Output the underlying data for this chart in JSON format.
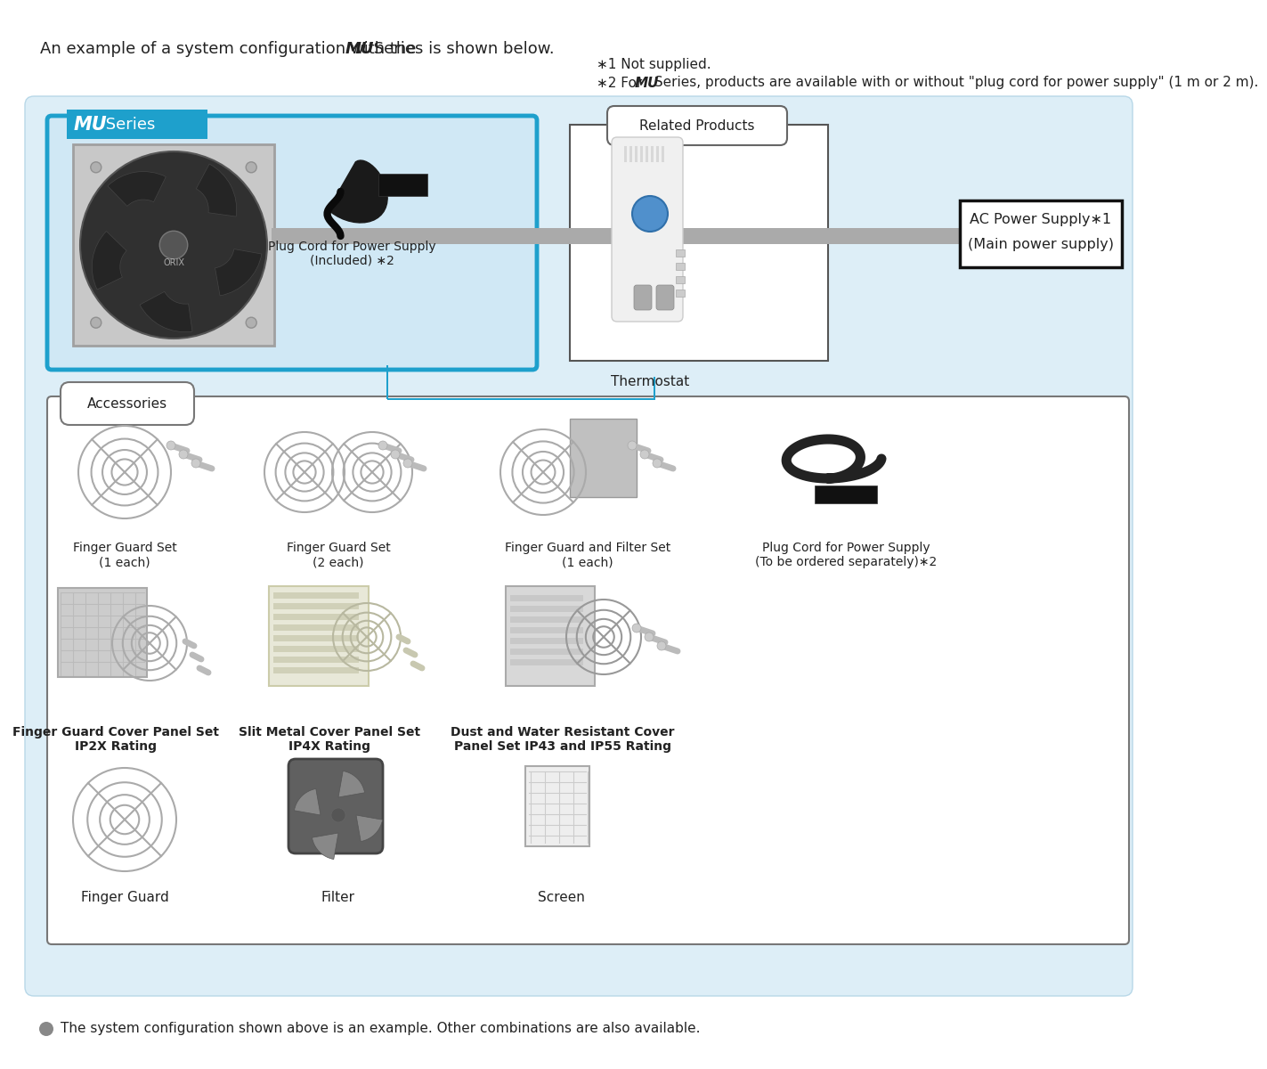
{
  "bg_color": "#ddeef7",
  "white": "#ffffff",
  "blue_header": "#1ea0cc",
  "light_blue_fill": "#d0e8f5",
  "text_color": "#222222",
  "gray_line_color": "#aaaaaa",
  "note1": "∗1 Not supplied.",
  "note2_pre": "∗2 For ",
  "note2_bold": "MU",
  "note2_end": " Series, products are available with or without \"plug cord for power supply\" (1 m or 2 m).",
  "mu_label_bold": "MU",
  "mu_label_rest": " Series",
  "related_products_label": "Related Products",
  "ac_power_line1": "AC Power Supply∗1",
  "ac_power_line2": "(Main power supply)",
  "thermostat_label": "Thermostat",
  "plug_included_line1": "Plug Cord for Power Supply",
  "plug_included_line2": "(Included) ∗2",
  "accessories_label": "Accessories",
  "fg_set1_label": "Finger Guard Set\n(1 each)",
  "fg_set2_label": "Finger Guard Set\n(2 each)",
  "fg_filter_label": "Finger Guard and Filter Set\n(1 each)",
  "plug_sep_line1": "Plug Cord for Power Supply",
  "plug_sep_line2": "(To be ordered separately)∗2",
  "fgcp_label": "Finger Guard Cover Panel Set\nIP2X Rating",
  "smcp_label": "Slit Metal Cover Panel Set\nIP4X Rating",
  "dwrcp_label": "Dust and Water Resistant Cover\nPanel Set IP43 and IP55 Rating",
  "fg_label": "Finger Guard",
  "filter_label": "Filter",
  "screen_label": "Screen",
  "footer_text": "The system configuration shown above is an example. Other combinations are also available.",
  "title_pre": "An example of a system configuration with the ",
  "title_bold": "MU",
  "title_post": " Series is shown below."
}
